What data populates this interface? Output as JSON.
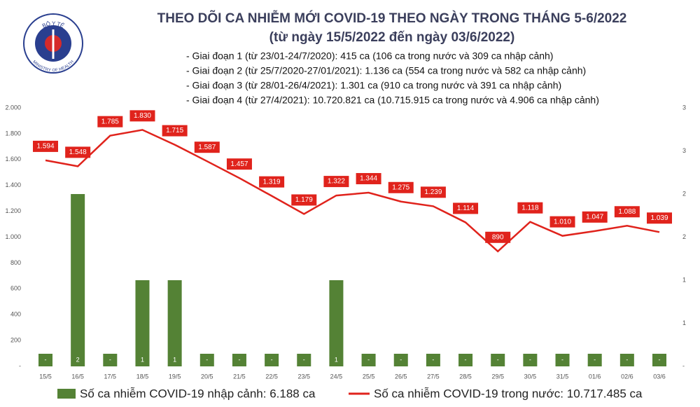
{
  "logo": {
    "top": "BỘ Y TẾ",
    "bottom": "MINISTRY OF HEALTH"
  },
  "chart_data": {
    "type": "combo",
    "title": "THEO DÕI CA NHIỄM MỚI COVID-19 THEO NGÀY TRONG THÁNG 5-6/2022",
    "subtitle": "(từ ngày 15/5/2022 đến ngày 03/6/2022)",
    "annotations": [
      "- Giai đoạn 1 (từ 23/01-24/7/2020): 415 ca (106 ca trong nước và 309 ca nhập cảnh)",
      "- Giai đoạn 2 (từ 25/7/2020-27/01/2021): 1.136 ca (554 ca trong nước và 582 ca nhập cảnh)",
      "- Giai đoạn 3 (từ 28/01-26/4/2021): 1.301 ca (910 ca trong nước và 391 ca nhập cảnh)",
      "- Giai đoạn 4 (từ 27/4/2021): 10.720.821 ca (10.715.915 ca trong nước và 4.906 ca nhập cảnh)"
    ],
    "categories": [
      "15/5",
      "16/5",
      "17/5",
      "18/5",
      "19/5",
      "20/5",
      "21/5",
      "22/5",
      "23/5",
      "24/5",
      "25/5",
      "26/5",
      "27/5",
      "28/5",
      "29/5",
      "30/5",
      "31/5",
      "01/6",
      "02/6",
      "03/6"
    ],
    "series": [
      {
        "name": "Số ca nhiễm COVID-19 nhập cảnh: 6.188 ca",
        "type": "bar",
        "axis": "y2",
        "color": "#548235",
        "values": [
          0,
          2,
          0,
          1,
          1,
          0,
          0,
          0,
          0,
          1,
          0,
          0,
          0,
          0,
          0,
          0,
          0,
          0,
          0,
          0
        ],
        "value_labels": [
          "-",
          "2",
          "-",
          "1",
          "1",
          "-",
          "-",
          "-",
          "-",
          "1",
          "-",
          "-",
          "-",
          "-",
          "-",
          "-",
          "-",
          "-",
          "-",
          "-"
        ]
      },
      {
        "name": "Số ca nhiễm COVID-19 trong nước: 10.717.485 ca",
        "type": "line",
        "color": "#e0231c",
        "values": [
          1594,
          1548,
          1785,
          1830,
          1715,
          1587,
          1457,
          1319,
          1179,
          1322,
          1344,
          1275,
          1239,
          1114,
          890,
          1118,
          1010,
          1047,
          1088,
          1039
        ],
        "value_labels": [
          "1.594",
          "1.548",
          "1.785",
          "1.830",
          "1.715",
          "1.587",
          "1.457",
          "1.319",
          "1.179",
          "1.322",
          "1.344",
          "1.275",
          "1.239",
          "1.114",
          "890",
          "1.118",
          "1.010",
          "1.047",
          "1.088",
          "1.039"
        ]
      }
    ],
    "ylim": [
      0,
      2000
    ],
    "yticks": [
      {
        "value": 0,
        "label": "-"
      },
      200,
      400,
      600,
      800,
      {
        "value": 1000,
        "label": "1.000"
      },
      {
        "value": 1200,
        "label": "1.200"
      },
      {
        "value": 1400,
        "label": "1.400"
      },
      {
        "value": 1600,
        "label": "1.600"
      },
      {
        "value": 1800,
        "label": "1.800"
      },
      {
        "value": 2000,
        "label": "2.000"
      }
    ],
    "y2lim": [
      0,
      3
    ],
    "y2ticks": [
      {
        "value": 0,
        "label": "-"
      },
      {
        "value": 0.5,
        "label": "1"
      },
      1,
      {
        "value": 1.5,
        "label": "2"
      },
      2,
      {
        "value": 2.5,
        "label": "3"
      },
      3
    ]
  }
}
